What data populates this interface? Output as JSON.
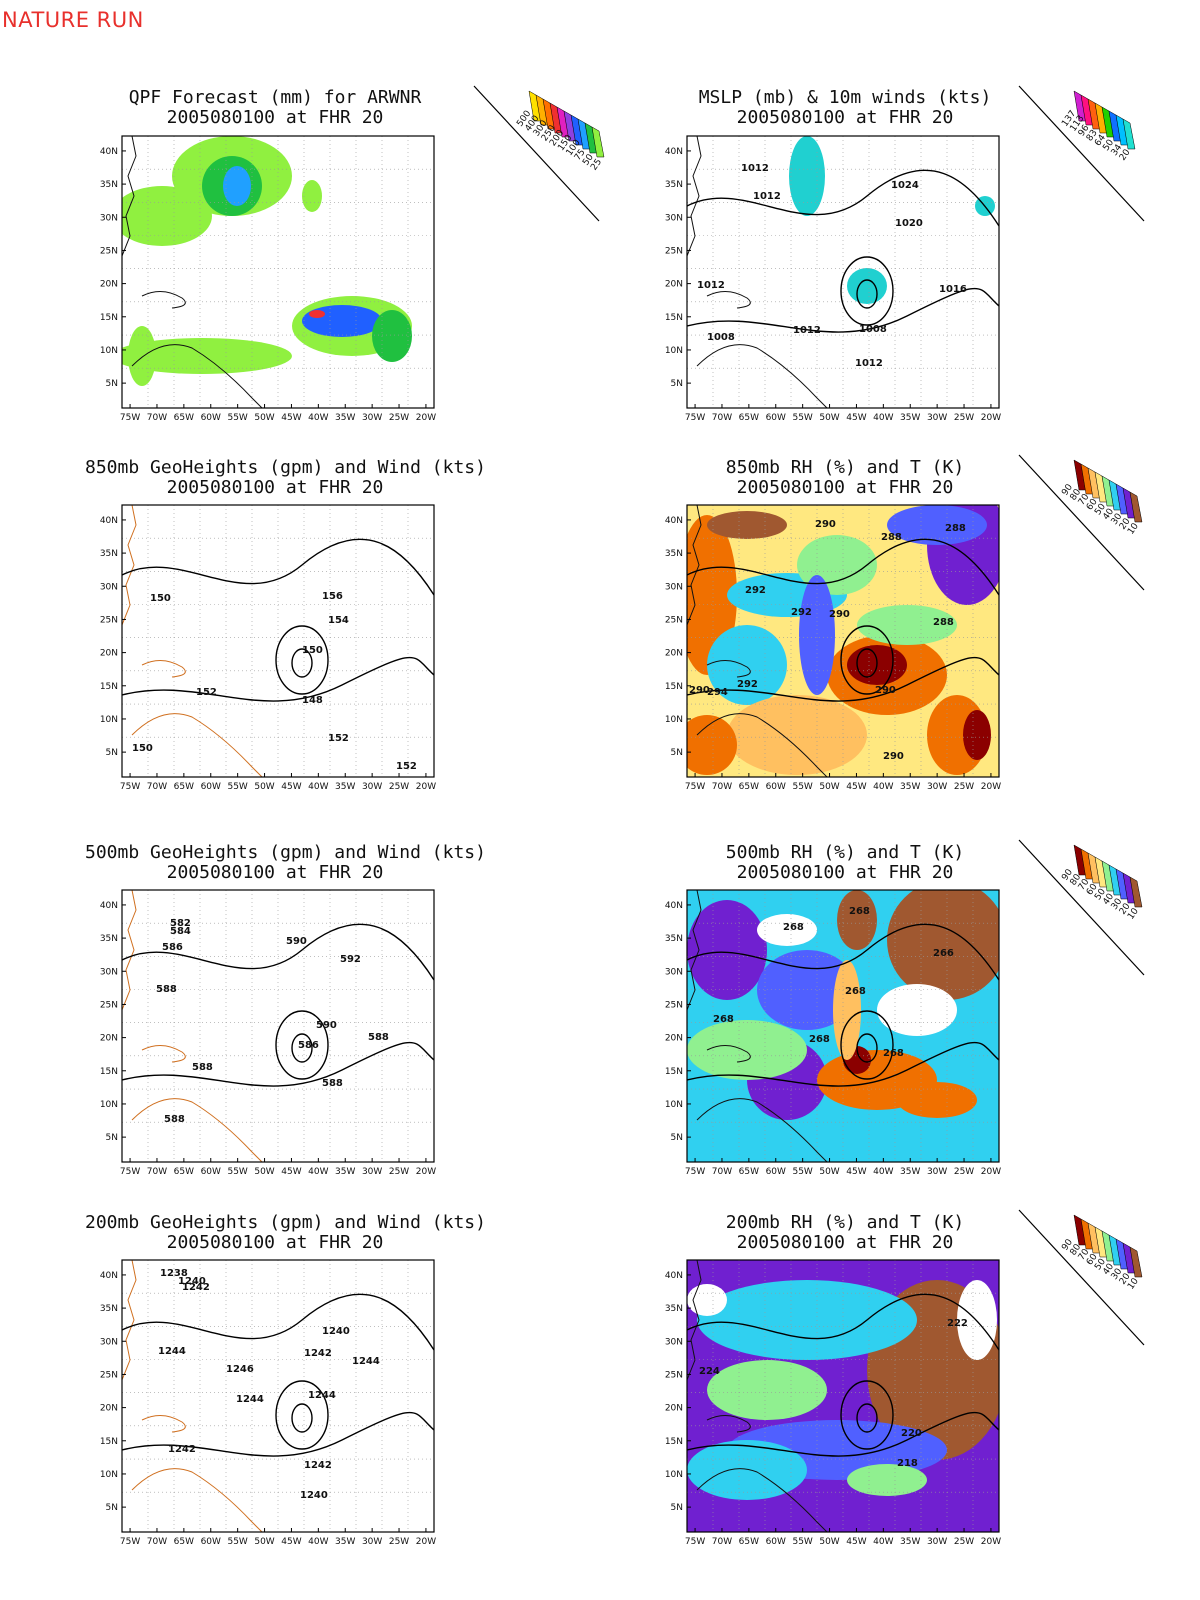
{
  "page_title": "NATURE RUN",
  "panels": [
    {
      "id": "qpf",
      "title1": "QPF Forecast (mm) for ARWNR",
      "title2": "2005080100 at FHR 20",
      "legend": [
        "500",
        "400",
        "300",
        "250",
        "200",
        "150",
        "100",
        "75",
        "50",
        "25"
      ],
      "contours": []
    },
    {
      "id": "mslp",
      "title1": "MSLP (mb) & 10m winds (kts)",
      "title2": "2005080100 at FHR 20",
      "legend": [
        "137",
        "113",
        "96",
        "83",
        "64",
        "50",
        "34",
        "20"
      ],
      "contours": [
        "1012",
        "1012",
        "1024",
        "1020",
        "1012",
        "1016",
        "1012",
        "1008",
        "1012",
        "1008"
      ]
    },
    {
      "id": "h850",
      "title1": "850mb GeoHeights (gpm) and Wind (kts)",
      "title2": "2005080100 at FHR 20",
      "legend": [],
      "contours": [
        "150",
        "156",
        "154",
        "150",
        "152",
        "148",
        "152",
        "150",
        "152"
      ]
    },
    {
      "id": "rh850",
      "title1": "850mb RH (%) and T (K)",
      "title2": "2005080100 at FHR 20",
      "legend": [
        "90",
        "80",
        "70",
        "60",
        "50",
        "40",
        "30",
        "20",
        "10"
      ],
      "contours": [
        "290",
        "288",
        "288",
        "292",
        "292",
        "290",
        "288",
        "290",
        "292",
        "294",
        "290",
        "290"
      ]
    },
    {
      "id": "h500",
      "title1": "500mb GeoHeights (gpm) and Wind (kts)",
      "title2": "2005080100 at FHR 20",
      "legend": [],
      "contours": [
        "582",
        "584",
        "586",
        "590",
        "592",
        "588",
        "590",
        "588",
        "586",
        "588",
        "588",
        "588"
      ]
    },
    {
      "id": "rh500",
      "title1": "500mb RH (%) and T (K)",
      "title2": "2005080100 at FHR 20",
      "legend": [
        "90",
        "80",
        "70",
        "60",
        "50",
        "40",
        "30",
        "20",
        "10"
      ],
      "contours": [
        "268",
        "268",
        "266",
        "268",
        "268",
        "268",
        "268"
      ]
    },
    {
      "id": "h200",
      "title1": "200mb GeoHeights (gpm) and Wind (kts)",
      "title2": "2005080100 at FHR 20",
      "legend": [],
      "contours": [
        "1238",
        "1240",
        "1242",
        "1240",
        "1244",
        "1246",
        "1242",
        "1244",
        "1244",
        "1244",
        "1242",
        "1242",
        "1240"
      ]
    },
    {
      "id": "rh200",
      "title1": "200mb RH (%) and T (K)",
      "title2": "2005080100 at FHR 20",
      "legend": [
        "90",
        "80",
        "70",
        "60",
        "50",
        "40",
        "30",
        "20",
        "10"
      ],
      "contours": [
        "222",
        "224",
        "220",
        "218"
      ]
    }
  ],
  "lat_labels": [
    "40N",
    "35N",
    "30N",
    "25N",
    "20N",
    "15N",
    "10N",
    "5N"
  ],
  "lon_labels": [
    "75W",
    "70W",
    "65W",
    "60W",
    "55W",
    "50W",
    "45W",
    "40W",
    "35W",
    "30W",
    "25W",
    "20W"
  ],
  "colors": {
    "qpf_legend": [
      "#ffe000",
      "#ffb000",
      "#ff7000",
      "#f03030",
      "#e020c0",
      "#9040e0",
      "#2060ff",
      "#20a0ff",
      "#20c040",
      "#90f040"
    ],
    "wind_legend": [
      "#d020d0",
      "#ff1080",
      "#ff6010",
      "#ffb000",
      "#20d000",
      "#1070ff",
      "#00c0ff",
      "#20e0d0"
    ],
    "rh_legend": [
      "#8b0000",
      "#f07000",
      "#ffc060",
      "#ffe880",
      "#90f090",
      "#30d0f0",
      "#5060ff",
      "#7020d0",
      "#a05830"
    ]
  }
}
